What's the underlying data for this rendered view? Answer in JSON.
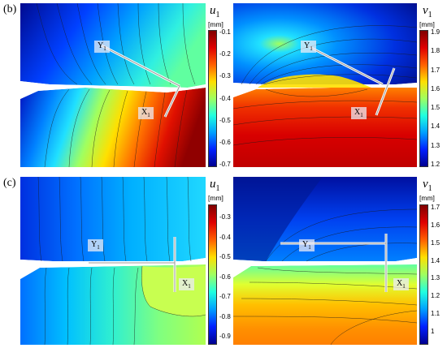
{
  "rows": [
    {
      "label": "(b)",
      "panels": [
        {
          "variable": "u",
          "sub": "1",
          "unit": "[mm]",
          "ticks": [
            "-0.1",
            "-0.2",
            "-0.3",
            "-0.4",
            "-0.5",
            "-0.6",
            "-0.7"
          ],
          "axis_y": {
            "text": "Y",
            "sub": "1"
          },
          "axis_x": {
            "text": "X",
            "sub": "1"
          }
        },
        {
          "variable": "v",
          "sub": "1",
          "unit": "[mm]",
          "ticks": [
            "1.9",
            "1.8",
            "1.7",
            "1.6",
            "1.5",
            "1.4",
            "1.3",
            "1.2"
          ],
          "axis_y": {
            "text": "Y",
            "sub": "1"
          },
          "axis_x": {
            "text": "X",
            "sub": "1"
          }
        }
      ]
    },
    {
      "label": "(c)",
      "panels": [
        {
          "variable": "u",
          "sub": "1",
          "unit": "[mm]",
          "ticks": [
            "-0.3",
            "-0.4",
            "-0.5",
            "-0.6",
            "-0.7",
            "-0.8",
            "-0.9"
          ],
          "axis_y": {
            "text": "Y",
            "sub": "1"
          },
          "axis_x": {
            "text": "X",
            "sub": "1"
          }
        },
        {
          "variable": "v",
          "sub": "1",
          "unit": "[mm]",
          "ticks": [
            "1.7",
            "1.6",
            "1.5",
            "1.4",
            "1.3",
            "1.2",
            "1.1",
            "1"
          ],
          "axis_y": {
            "text": "Y",
            "sub": "1"
          },
          "axis_x": {
            "text": "X",
            "sub": "1"
          }
        }
      ]
    }
  ],
  "colors": {
    "jet": [
      "#00008f",
      "#0020ff",
      "#00a0ff",
      "#20ffdf",
      "#9fff60",
      "#ffdf00",
      "#ff6000",
      "#df0000",
      "#800000"
    ]
  }
}
